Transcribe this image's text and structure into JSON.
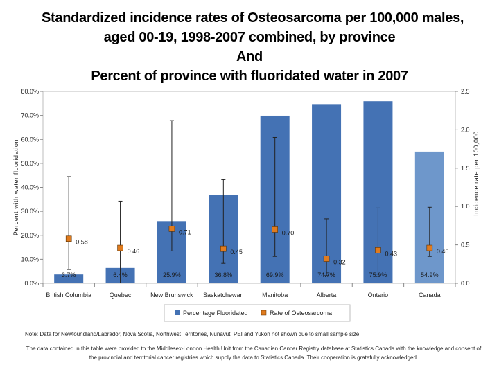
{
  "chart_data": {
    "type": "bar",
    "title_lines": [
      "Standardized incidence rates of Osteosarcoma per 100,000 males,",
      "aged 00-19, 1998-2007 combined, by province",
      "And",
      "Percent of province with fluoridated water in 2007"
    ],
    "categories": [
      "British Columbia",
      "Quebec",
      "New Brunswick",
      "Saskatchewan",
      "Manitoba",
      "Alberta",
      "Ontario",
      "Canada"
    ],
    "ylabel": "Percent with water fluoridation",
    "y2label": "Incidence rate per 100,000",
    "ylim": [
      0,
      80
    ],
    "y2lim": [
      0,
      2.5
    ],
    "yticks": [
      "0.0%",
      "10.0%",
      "20.0%",
      "30.0%",
      "40.0%",
      "50.0%",
      "60.0%",
      "70.0%",
      "80.0%"
    ],
    "y2ticks": [
      "0.0",
      "0.5",
      "1.0",
      "1.5",
      "2.0",
      "2.5"
    ],
    "series": [
      {
        "name": "Percentage Fluoridated",
        "kind": "bar",
        "axis": "left",
        "color": "#4472B4",
        "highlight_color": "#6E97CB",
        "values": [
          3.7,
          6.4,
          25.9,
          36.8,
          69.9,
          74.7,
          75.9,
          54.9
        ],
        "labels": [
          "3.7%",
          "6.4%",
          "25.9%",
          "36.8%",
          "69.9%",
          "74.7%",
          "75.9%",
          "54.9%"
        ]
      },
      {
        "name": "Rate of Osteosarcoma",
        "kind": "marker",
        "axis": "right",
        "color": "#E07B1E",
        "values": [
          0.58,
          0.46,
          0.71,
          0.45,
          0.7,
          0.32,
          0.43,
          0.46
        ],
        "labels": [
          "0.58",
          "0.46",
          "0.71",
          "0.45",
          "0.70",
          "0.32",
          "0.43",
          "0.46"
        ],
        "error_low": [
          0.18,
          null,
          0.42,
          0.26,
          0.35,
          0.1,
          0.12,
          0.35
        ],
        "error_high": [
          1.39,
          1.07,
          2.12,
          1.35,
          1.9,
          0.84,
          0.98,
          0.99
        ]
      }
    ],
    "legend_position": "bottom"
  },
  "notes": {
    "line1": "Note: Data for Newfoundland/Labrador, Nova Scotia, Northwest Territories, Nunavut, PEI and Yukon not shown due to small sample size",
    "line2": "The data contained in this table were provided to the Middlesex-London Health Unit from the Canadian Cancer Registry database at Statistics Canada with the knowledge and consent of the provincial and territorial cancer registries which supply the data to Statistics Canada. Their cooperation is gratefully acknowledged."
  }
}
